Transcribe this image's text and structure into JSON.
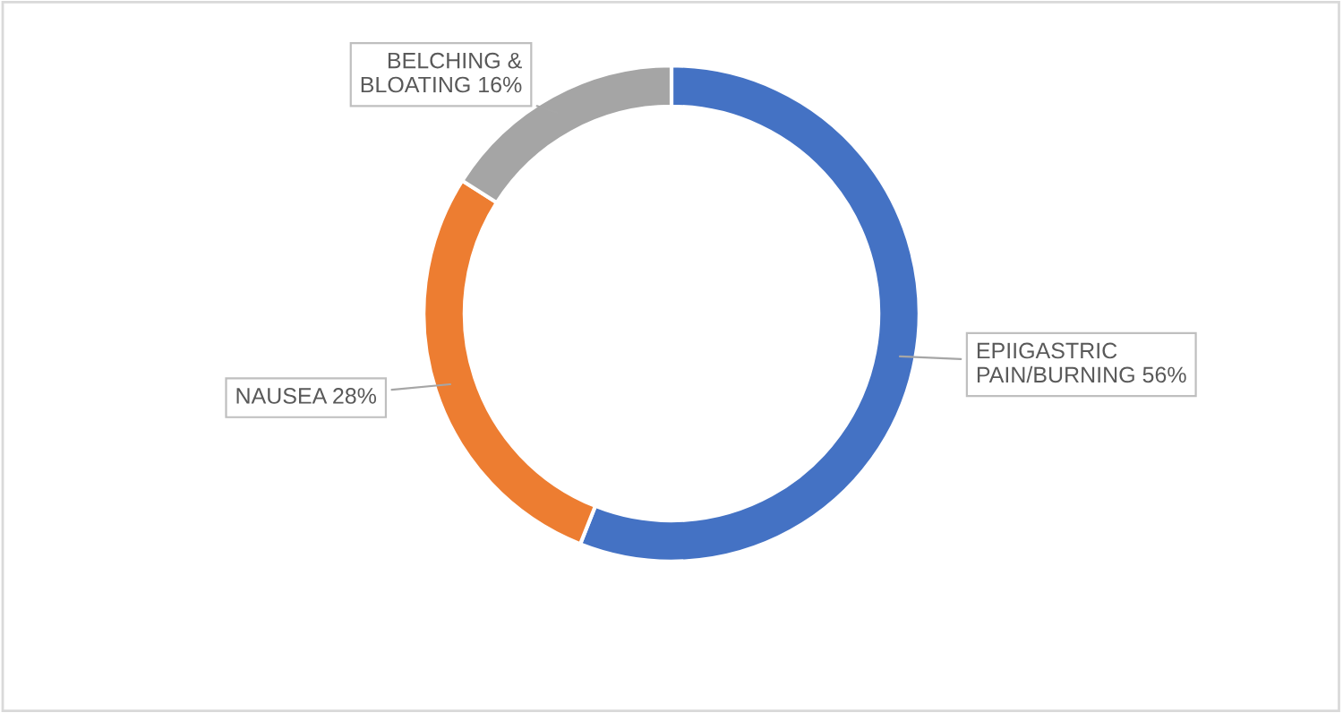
{
  "chart_data": {
    "type": "donut",
    "categories": [
      "EPIIGASTRIC PAIN/BURNING",
      "NAUSEA",
      "BELCHING & BLOATING"
    ],
    "values": [
      56,
      28,
      16
    ],
    "value_labels": [
      "56%",
      "28%",
      "16%"
    ],
    "colors": [
      "#4472c4",
      "#ed7d31",
      "#a5a5a5"
    ],
    "legend": false
  }
}
